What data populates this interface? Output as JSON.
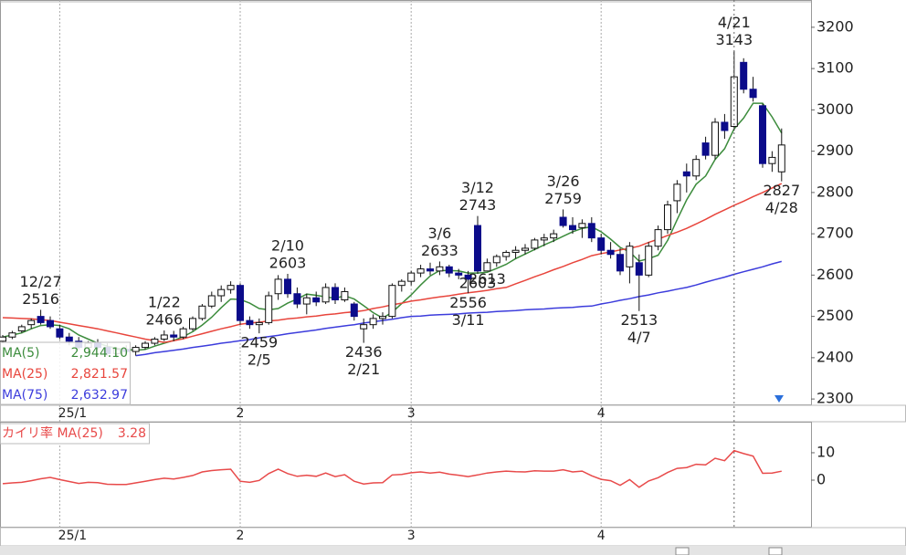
{
  "chart_data": [
    {
      "type": "candlestick",
      "categories": [
        null,
        null,
        null,
        null,
        null,
        null,
        "25/1",
        null,
        null,
        null,
        null,
        null,
        null,
        null,
        null,
        null,
        null,
        null,
        null,
        null,
        null,
        null,
        null,
        null,
        null,
        "2",
        null,
        null,
        null,
        null,
        null,
        null,
        null,
        null,
        null,
        null,
        null,
        null,
        null,
        null,
        null,
        null,
        null,
        "3",
        null,
        null,
        null,
        null,
        null,
        null,
        null,
        null,
        null,
        null,
        null,
        null,
        null,
        null,
        null,
        null,
        null,
        null,
        null,
        "4",
        null,
        null,
        null,
        null,
        null,
        null,
        null,
        null,
        null,
        null,
        null,
        null,
        null,
        null,
        null,
        null,
        null,
        null,
        null
      ],
      "open": [
        2440,
        2450,
        2465,
        2480,
        2500,
        2490,
        2470,
        2450,
        2440,
        2425,
        2435,
        2425,
        2410,
        2420,
        2415,
        2425,
        2435,
        2445,
        2455,
        2450,
        2470,
        2495,
        2525,
        2550,
        2565,
        2575,
        2490,
        2480,
        2485,
        2555,
        2590,
        2555,
        2530,
        2545,
        2535,
        2570,
        2540,
        2530,
        2470,
        2480,
        2495,
        2500,
        2575,
        2585,
        2605,
        2615,
        2610,
        2620,
        2605,
        2600,
        2720,
        2610,
        2630,
        2645,
        2655,
        2660,
        2665,
        2685,
        2690,
        2740,
        2720,
        2715,
        2725,
        2690,
        2660,
        2650,
        2620,
        2630,
        2600,
        2670,
        2710,
        2780,
        2850,
        2840,
        2920,
        2890,
        2970,
        2960,
        3115,
        3050,
        3010,
        2870,
        2850
      ],
      "high": [
        2455,
        2465,
        2480,
        2495,
        2516,
        2500,
        2480,
        2460,
        2450,
        2440,
        2445,
        2435,
        2425,
        2430,
        2430,
        2440,
        2450,
        2466,
        2465,
        2475,
        2500,
        2530,
        2560,
        2575,
        2585,
        2580,
        2500,
        2495,
        2560,
        2600,
        2603,
        2570,
        2555,
        2560,
        2580,
        2580,
        2570,
        2535,
        2495,
        2505,
        2510,
        2580,
        2590,
        2610,
        2625,
        2630,
        2633,
        2625,
        2615,
        2610,
        2743,
        2640,
        2650,
        2660,
        2670,
        2675,
        2690,
        2700,
        2710,
        2759,
        2740,
        2735,
        2740,
        2700,
        2680,
        2665,
        2680,
        2650,
        2680,
        2720,
        2780,
        2830,
        2870,
        2890,
        2935,
        2980,
        2990,
        3143,
        3125,
        3080,
        3015,
        2900,
        2955
      ],
      "low": [
        2435,
        2445,
        2460,
        2470,
        2480,
        2470,
        2445,
        2430,
        2420,
        2415,
        2420,
        2405,
        2400,
        2410,
        2405,
        2420,
        2430,
        2440,
        2440,
        2445,
        2465,
        2490,
        2520,
        2535,
        2555,
        2480,
        2470,
        2459,
        2480,
        2540,
        2545,
        2520,
        2505,
        2525,
        2530,
        2530,
        2535,
        2490,
        2436,
        2470,
        2480,
        2495,
        2560,
        2575,
        2595,
        2600,
        2600,
        2595,
        2590,
        2556,
        2603,
        2613,
        2620,
        2635,
        2640,
        2650,
        2660,
        2670,
        2680,
        2715,
        2700,
        2690,
        2680,
        2650,
        2640,
        2600,
        2580,
        2513,
        2595,
        2660,
        2700,
        2750,
        2800,
        2830,
        2880,
        2880,
        2930,
        2950,
        3040,
        3020,
        2860,
        2850,
        2827
      ],
      "close": [
        2450,
        2460,
        2475,
        2490,
        2485,
        2475,
        2450,
        2440,
        2425,
        2435,
        2425,
        2410,
        2420,
        2415,
        2425,
        2435,
        2445,
        2455,
        2450,
        2470,
        2495,
        2525,
        2550,
        2565,
        2575,
        2490,
        2480,
        2485,
        2550,
        2590,
        2555,
        2530,
        2545,
        2535,
        2570,
        2540,
        2560,
        2500,
        2480,
        2495,
        2500,
        2575,
        2585,
        2605,
        2615,
        2610,
        2620,
        2605,
        2600,
        2590,
        2610,
        2630,
        2645,
        2655,
        2660,
        2665,
        2685,
        2690,
        2700,
        2720,
        2710,
        2725,
        2690,
        2660,
        2650,
        2610,
        2670,
        2600,
        2670,
        2710,
        2770,
        2820,
        2840,
        2880,
        2890,
        2970,
        2950,
        3080,
        3050,
        3030,
        2870,
        2885,
        2915
      ],
      "series": [
        {
          "name": "MA(5)",
          "color": "#3c8c3c",
          "value_label": "2,944.10",
          "values": [
            2450,
            2455,
            2460,
            2470,
            2478,
            2480,
            2478,
            2470,
            2455,
            2445,
            2435,
            2428,
            2423,
            2420,
            2418,
            2420,
            2428,
            2435,
            2442,
            2451,
            2463,
            2479,
            2498,
            2521,
            2542,
            2541,
            2532,
            2519,
            2516,
            2519,
            2532,
            2542,
            2554,
            2551,
            2547,
            2544,
            2550,
            2542,
            2526,
            2509,
            2496,
            2510,
            2531,
            2552,
            2576,
            2598,
            2611,
            2611,
            2610,
            2605,
            2605,
            2607,
            2616,
            2626,
            2640,
            2651,
            2662,
            2673,
            2683,
            2694,
            2705,
            2713,
            2717,
            2705,
            2687,
            2667,
            2656,
            2634,
            2640,
            2648,
            2684,
            2734,
            2782,
            2820,
            2840,
            2880,
            2906,
            2954,
            2980,
            3016,
            3016,
            2983,
            2944.1
          ]
        },
        {
          "name": "MA(25)",
          "color": "#e8453c",
          "value_label": "2,821.57",
          "values": [
            2497,
            2496,
            2495,
            2494,
            2492,
            2490,
            2486,
            2482,
            2478,
            2474,
            2470,
            2465,
            2460,
            2455,
            2450,
            2445,
            2441,
            2437,
            2441,
            2446,
            2452,
            2458,
            2464,
            2470,
            2475,
            2481,
            2484,
            2486,
            2489,
            2491,
            2494,
            2496,
            2499,
            2501,
            2504,
            2506,
            2509,
            2511,
            2514,
            2519,
            2523,
            2528,
            2532,
            2537,
            2540,
            2544,
            2547,
            2550,
            2554,
            2557,
            2560,
            2563,
            2567,
            2570,
            2579,
            2587,
            2596,
            2604,
            2613,
            2621,
            2630,
            2638,
            2647,
            2652,
            2656,
            2661,
            2665,
            2670,
            2679,
            2687,
            2696,
            2704,
            2713,
            2724,
            2735,
            2747,
            2758,
            2769,
            2779,
            2790,
            2800,
            2811,
            2821.57
          ]
        },
        {
          "name": "MA(75)",
          "color": "#3c3cdc",
          "value_label": "2,632.97",
          "values": [
            null,
            null,
            null,
            null,
            null,
            null,
            null,
            null,
            null,
            null,
            null,
            null,
            null,
            null,
            2405,
            2408,
            2412,
            2415,
            2418,
            2421,
            2425,
            2428,
            2431,
            2435,
            2438,
            2441,
            2444,
            2448,
            2451,
            2454,
            2458,
            2461,
            2464,
            2467,
            2471,
            2474,
            2477,
            2480,
            2484,
            2487,
            2490,
            2493,
            2497,
            2500,
            2501,
            2503,
            2504,
            2505,
            2506,
            2508,
            2509,
            2510,
            2512,
            2513,
            2514,
            2516,
            2517,
            2518,
            2520,
            2521,
            2522,
            2524,
            2525,
            2530,
            2534,
            2539,
            2543,
            2548,
            2552,
            2557,
            2561,
            2566,
            2570,
            2576,
            2583,
            2589,
            2595,
            2602,
            2608,
            2614,
            2620,
            2627,
            2632.97
          ]
        }
      ],
      "high_labels": [
        {
          "label": "12/27",
          "value": 2516
        },
        {
          "label": "1/22",
          "value": 2466
        },
        {
          "label": "2/10",
          "value": 2603
        },
        {
          "label": "3/6",
          "value": 2633
        },
        {
          "label": "3/12",
          "value": 2743
        },
        {
          "label": "3/26",
          "value": 2759
        },
        {
          "label": "4/21",
          "value": 3143
        }
      ],
      "low_labels": [
        {
          "label": "2/5",
          "value": 2459
        },
        {
          "label": "2/21",
          "value": 2436
        },
        {
          "label": "3/11",
          "value": 2556
        },
        {
          "value": 2603
        },
        {
          "value": 2613
        },
        {
          "label": "4/7",
          "value": 2513
        },
        {
          "label": "4/28",
          "value": 2827
        }
      ],
      "ylim": [
        2287,
        3266
      ],
      "yticks": [
        2300,
        2400,
        2500,
        2600,
        2700,
        2800,
        2900,
        3000,
        3100,
        3200
      ]
    },
    {
      "type": "line",
      "title": "カイリ率 MA(25)",
      "color": "#e84a4a",
      "values": [
        -1.3,
        -1.0,
        -0.8,
        -0.2,
        0.5,
        1.0,
        0.2,
        -0.5,
        -1.2,
        -0.8,
        -0.9,
        -1.5,
        -1.6,
        -1.6,
        -1.0,
        -0.4,
        0.2,
        0.7,
        0.4,
        1.0,
        1.7,
        3.0,
        3.5,
        3.8,
        4.0,
        -0.4,
        -0.8,
        -0.1,
        2.4,
        4.0,
        2.4,
        1.4,
        1.8,
        1.4,
        2.6,
        1.3,
        2.0,
        -0.4,
        -1.4,
        -1.0,
        -0.9,
        1.9,
        2.1,
        2.7,
        3.0,
        2.6,
        2.9,
        2.2,
        1.8,
        1.3,
        1.9,
        2.6,
        3.0,
        3.3,
        3.1,
        3.0,
        3.4,
        3.3,
        3.3,
        3.8,
        3.0,
        3.3,
        1.6,
        0.3,
        -0.2,
        -1.9,
        0.2,
        -2.6,
        -0.3,
        0.9,
        2.8,
        4.3,
        4.6,
        5.8,
        5.6,
        8.0,
        7.1,
        10.8,
        9.7,
        8.8,
        2.5,
        2.6,
        3.28
      ],
      "ylim": [
        -17.3,
        21.3
      ],
      "yticks": [
        0,
        10
      ]
    }
  ]
}
